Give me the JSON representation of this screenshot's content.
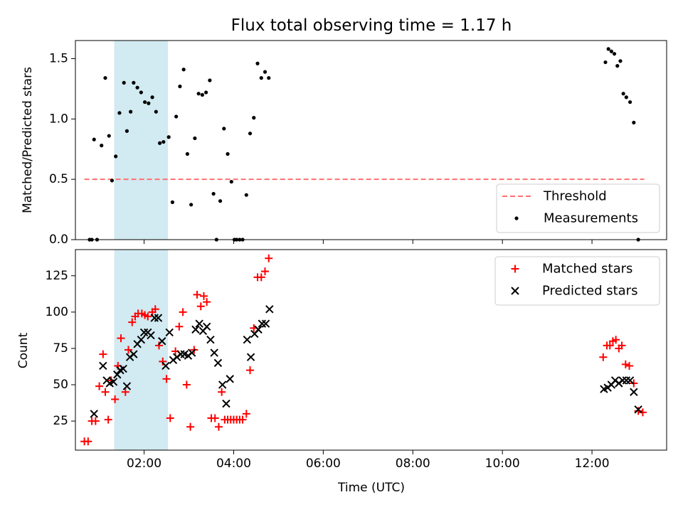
{
  "chart_data": [
    {
      "type": "scatter",
      "title": "Flux total observing time = 1.17 h",
      "ylabel": "Matched/Predicted stars",
      "xlabel": "",
      "xlim": [
        "00:28",
        "13:40"
      ],
      "ylim": [
        0,
        1.65
      ],
      "xticks": [
        "02:00",
        "04:00",
        "06:00",
        "08:00",
        "10:00",
        "12:00"
      ],
      "yticks": [
        0.0,
        0.5,
        1.0,
        1.5
      ],
      "ytick_labels": [
        "0.0",
        "0.5",
        "1.0",
        "1.5"
      ],
      "shaded_region": {
        "x": [
          "01:20",
          "02:32"
        ],
        "color": "#add8e6"
      },
      "threshold": {
        "name": "Threshold",
        "y": 0.5,
        "x": [
          "00:40",
          "13:10"
        ],
        "color": "#ff7070",
        "style": "dashed"
      },
      "series": [
        {
          "name": "Measurements",
          "color": "#000000",
          "marker": "dot",
          "points": [
            [
              "00:47",
              0.0
            ],
            [
              "00:50",
              0.0
            ],
            [
              "00:53",
              0.83
            ],
            [
              "00:57",
              0.0
            ],
            [
              "01:03",
              0.78
            ],
            [
              "01:08",
              1.34
            ],
            [
              "01:13",
              0.86
            ],
            [
              "01:17",
              0.49
            ],
            [
              "01:22",
              0.69
            ],
            [
              "01:27",
              1.05
            ],
            [
              "01:33",
              1.3
            ],
            [
              "01:37",
              0.9
            ],
            [
              "01:42",
              1.06
            ],
            [
              "01:46",
              1.3
            ],
            [
              "01:51",
              1.26
            ],
            [
              "01:56",
              1.22
            ],
            [
              "02:01",
              1.14
            ],
            [
              "02:06",
              1.13
            ],
            [
              "02:11",
              1.18
            ],
            [
              "02:16",
              1.06
            ],
            [
              "02:21",
              0.8
            ],
            [
              "02:26",
              0.81
            ],
            [
              "02:33",
              0.85
            ],
            [
              "02:38",
              0.31
            ],
            [
              "02:43",
              1.02
            ],
            [
              "02:48",
              1.27
            ],
            [
              "02:53",
              1.41
            ],
            [
              "02:58",
              0.71
            ],
            [
              "03:03",
              0.29
            ],
            [
              "03:08",
              0.84
            ],
            [
              "03:13",
              1.21
            ],
            [
              "03:18",
              1.2
            ],
            [
              "03:23",
              1.22
            ],
            [
              "03:28",
              1.32
            ],
            [
              "03:33",
              0.38
            ],
            [
              "03:37",
              0.0
            ],
            [
              "03:42",
              0.32
            ],
            [
              "03:47",
              0.92
            ],
            [
              "03:52",
              0.71
            ],
            [
              "03:57",
              0.48
            ],
            [
              "04:01",
              0.0
            ],
            [
              "04:04",
              0.0
            ],
            [
              "04:08",
              0.0
            ],
            [
              "04:12",
              0.0
            ],
            [
              "04:17",
              0.37
            ],
            [
              "04:22",
              0.88
            ],
            [
              "04:27",
              1.01
            ],
            [
              "04:32",
              1.46
            ],
            [
              "04:37",
              1.34
            ],
            [
              "04:42",
              1.39
            ],
            [
              "04:47",
              1.34
            ],
            [
              "12:18",
              1.47
            ],
            [
              "12:22",
              1.58
            ],
            [
              "12:26",
              1.56
            ],
            [
              "12:30",
              1.54
            ],
            [
              "12:34",
              1.44
            ],
            [
              "12:38",
              1.48
            ],
            [
              "12:42",
              1.21
            ],
            [
              "12:46",
              1.18
            ],
            [
              "12:51",
              1.14
            ],
            [
              "12:56",
              0.97
            ],
            [
              "13:02",
              0.0
            ]
          ]
        }
      ],
      "legend": {
        "placement": "lower-right",
        "entries": [
          "Threshold",
          "Measurements"
        ]
      }
    },
    {
      "type": "scatter",
      "title": "",
      "xlabel": "Time (UTC)",
      "ylabel": "Count",
      "xlim": [
        "00:28",
        "13:40"
      ],
      "ylim": [
        5,
        143
      ],
      "xticks": [
        "02:00",
        "04:00",
        "06:00",
        "08:00",
        "10:00",
        "12:00"
      ],
      "yticks": [
        25,
        50,
        75,
        100,
        125
      ],
      "shaded_region": {
        "x": [
          "01:20",
          "02:32"
        ],
        "color": "#add8e6"
      },
      "series": [
        {
          "name": "Matched stars",
          "color": "#ff0000",
          "marker": "plus",
          "points": [
            [
              "00:40",
              11
            ],
            [
              "00:45",
              11
            ],
            [
              "00:50",
              25
            ],
            [
              "00:55",
              25
            ],
            [
              "01:00",
              49
            ],
            [
              "01:05",
              71
            ],
            [
              "01:08",
              45
            ],
            [
              "01:12",
              26
            ],
            [
              "01:16",
              53
            ],
            [
              "01:21",
              40
            ],
            [
              "01:25",
              63
            ],
            [
              "01:29",
              82
            ],
            [
              "01:35",
              45
            ],
            [
              "01:39",
              74
            ],
            [
              "01:44",
              93
            ],
            [
              "01:48",
              97
            ],
            [
              "01:52",
              99
            ],
            [
              "01:57",
              99
            ],
            [
              "02:01",
              98
            ],
            [
              "02:05",
              97
            ],
            [
              "02:11",
              100
            ],
            [
              "02:15",
              102
            ],
            [
              "02:20",
              77
            ],
            [
              "02:25",
              66
            ],
            [
              "02:30",
              54
            ],
            [
              "02:35",
              27
            ],
            [
              "02:42",
              73
            ],
            [
              "02:47",
              90
            ],
            [
              "02:52",
              100
            ],
            [
              "02:57",
              50
            ],
            [
              "03:02",
              21
            ],
            [
              "03:07",
              74
            ],
            [
              "03:11",
              112
            ],
            [
              "03:16",
              104
            ],
            [
              "03:20",
              111
            ],
            [
              "03:24",
              107
            ],
            [
              "03:30",
              27
            ],
            [
              "03:35",
              27
            ],
            [
              "03:40",
              21
            ],
            [
              "03:44",
              45
            ],
            [
              "03:48",
              26
            ],
            [
              "03:52",
              26
            ],
            [
              "03:56",
              26
            ],
            [
              "04:00",
              26
            ],
            [
              "04:04",
              26
            ],
            [
              "04:08",
              26
            ],
            [
              "04:12",
              26
            ],
            [
              "04:17",
              30
            ],
            [
              "04:22",
              60
            ],
            [
              "04:27",
              89
            ],
            [
              "04:32",
              124
            ],
            [
              "04:37",
              124
            ],
            [
              "04:42",
              128
            ],
            [
              "04:47",
              137
            ],
            [
              "12:15",
              69
            ],
            [
              "12:20",
              77
            ],
            [
              "12:24",
              77
            ],
            [
              "12:28",
              80
            ],
            [
              "12:32",
              81
            ],
            [
              "12:36",
              75
            ],
            [
              "12:40",
              77
            ],
            [
              "12:45",
              64
            ],
            [
              "12:50",
              63
            ],
            [
              "12:56",
              51
            ],
            [
              "13:02",
              32
            ],
            [
              "13:08",
              31
            ]
          ]
        },
        {
          "name": "Predicted stars",
          "color": "#000000",
          "marker": "x",
          "points": [
            [
              "00:53",
              30
            ],
            [
              "01:05",
              63
            ],
            [
              "01:10",
              53
            ],
            [
              "01:14",
              51
            ],
            [
              "01:19",
              52
            ],
            [
              "01:24",
              57
            ],
            [
              "01:28",
              60
            ],
            [
              "01:32",
              61
            ],
            [
              "01:37",
              49
            ],
            [
              "01:41",
              69
            ],
            [
              "01:46",
              71
            ],
            [
              "01:51",
              78
            ],
            [
              "01:56",
              81
            ],
            [
              "02:00",
              86
            ],
            [
              "02:05",
              86
            ],
            [
              "02:09",
              84
            ],
            [
              "02:14",
              96
            ],
            [
              "02:19",
              96
            ],
            [
              "02:24",
              80
            ],
            [
              "02:29",
              63
            ],
            [
              "02:34",
              86
            ],
            [
              "02:39",
              67
            ],
            [
              "02:44",
              69
            ],
            [
              "02:49",
              71
            ],
            [
              "02:54",
              71
            ],
            [
              "02:59",
              70
            ],
            [
              "03:04",
              72
            ],
            [
              "03:09",
              88
            ],
            [
              "03:14",
              92
            ],
            [
              "03:19",
              87
            ],
            [
              "03:24",
              90
            ],
            [
              "03:29",
              81
            ],
            [
              "03:34",
              72
            ],
            [
              "03:39",
              65
            ],
            [
              "03:45",
              50
            ],
            [
              "03:50",
              37
            ],
            [
              "03:55",
              54
            ],
            [
              "04:18",
              81
            ],
            [
              "04:23",
              69
            ],
            [
              "04:28",
              85
            ],
            [
              "04:33",
              88
            ],
            [
              "04:38",
              92
            ],
            [
              "04:43",
              92
            ],
            [
              "04:48",
              102
            ],
            [
              "12:16",
              47
            ],
            [
              "12:21",
              48
            ],
            [
              "12:26",
              50
            ],
            [
              "12:31",
              53
            ],
            [
              "12:36",
              51
            ],
            [
              "12:41",
              53
            ],
            [
              "12:46",
              53
            ],
            [
              "12:51",
              53
            ],
            [
              "12:56",
              45
            ],
            [
              "13:02",
              33
            ]
          ]
        }
      ],
      "legend": {
        "placement": "upper-right",
        "entries": [
          "Matched stars",
          "Predicted stars"
        ]
      }
    }
  ]
}
